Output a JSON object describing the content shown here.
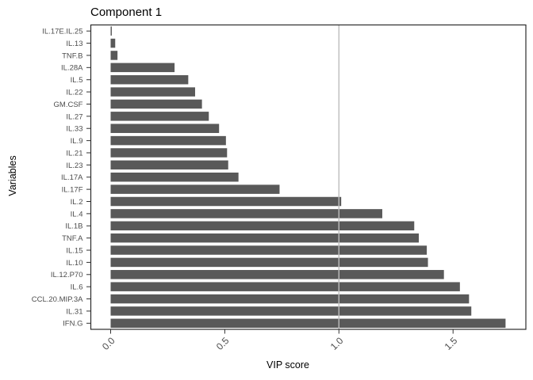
{
  "figure": {
    "background_color": "#ffffff"
  },
  "chart_data": {
    "type": "bar",
    "orientation": "horizontal",
    "title": "Component 1",
    "xlabel": "VIP score",
    "ylabel": "Variables",
    "categories": [
      "IL.17E.IL.25",
      "IL.13",
      "TNF.B",
      "IL.28A",
      "IL.5",
      "IL.22",
      "GM.CSF",
      "IL.27",
      "IL.33",
      "IL.9",
      "IL.21",
      "IL.23",
      "IL.17A",
      "IL.17F",
      "IL.2",
      "IL.4",
      "IL.1B",
      "TNF.A",
      "IL.15",
      "IL.10",
      "IL.12.P70",
      "IL.6",
      "CCL.20.MIP.3A",
      "IL.31",
      "IFN.G"
    ],
    "values": [
      0.005,
      0.02,
      0.03,
      0.28,
      0.34,
      0.37,
      0.4,
      0.43,
      0.475,
      0.505,
      0.51,
      0.515,
      0.56,
      0.74,
      1.01,
      1.19,
      1.33,
      1.35,
      1.385,
      1.39,
      1.46,
      1.53,
      1.57,
      1.58,
      1.73
    ],
    "x_ticks": [
      0.0,
      0.5,
      1.0,
      1.5
    ],
    "x_tick_labels": [
      "0.0",
      "0.5",
      "1.0",
      "1.5"
    ],
    "xlim": [
      -0.09,
      1.82
    ],
    "reference_line_x": 1.0,
    "grid": "off",
    "legend": "none",
    "colors": {
      "bar_fill": "#595959",
      "reference_line": "#bdbdbd",
      "panel_border": "#2b2b2b",
      "tick_mark": "#333333",
      "axis_text": "#4d4d4d",
      "title_text": "#000000"
    }
  }
}
